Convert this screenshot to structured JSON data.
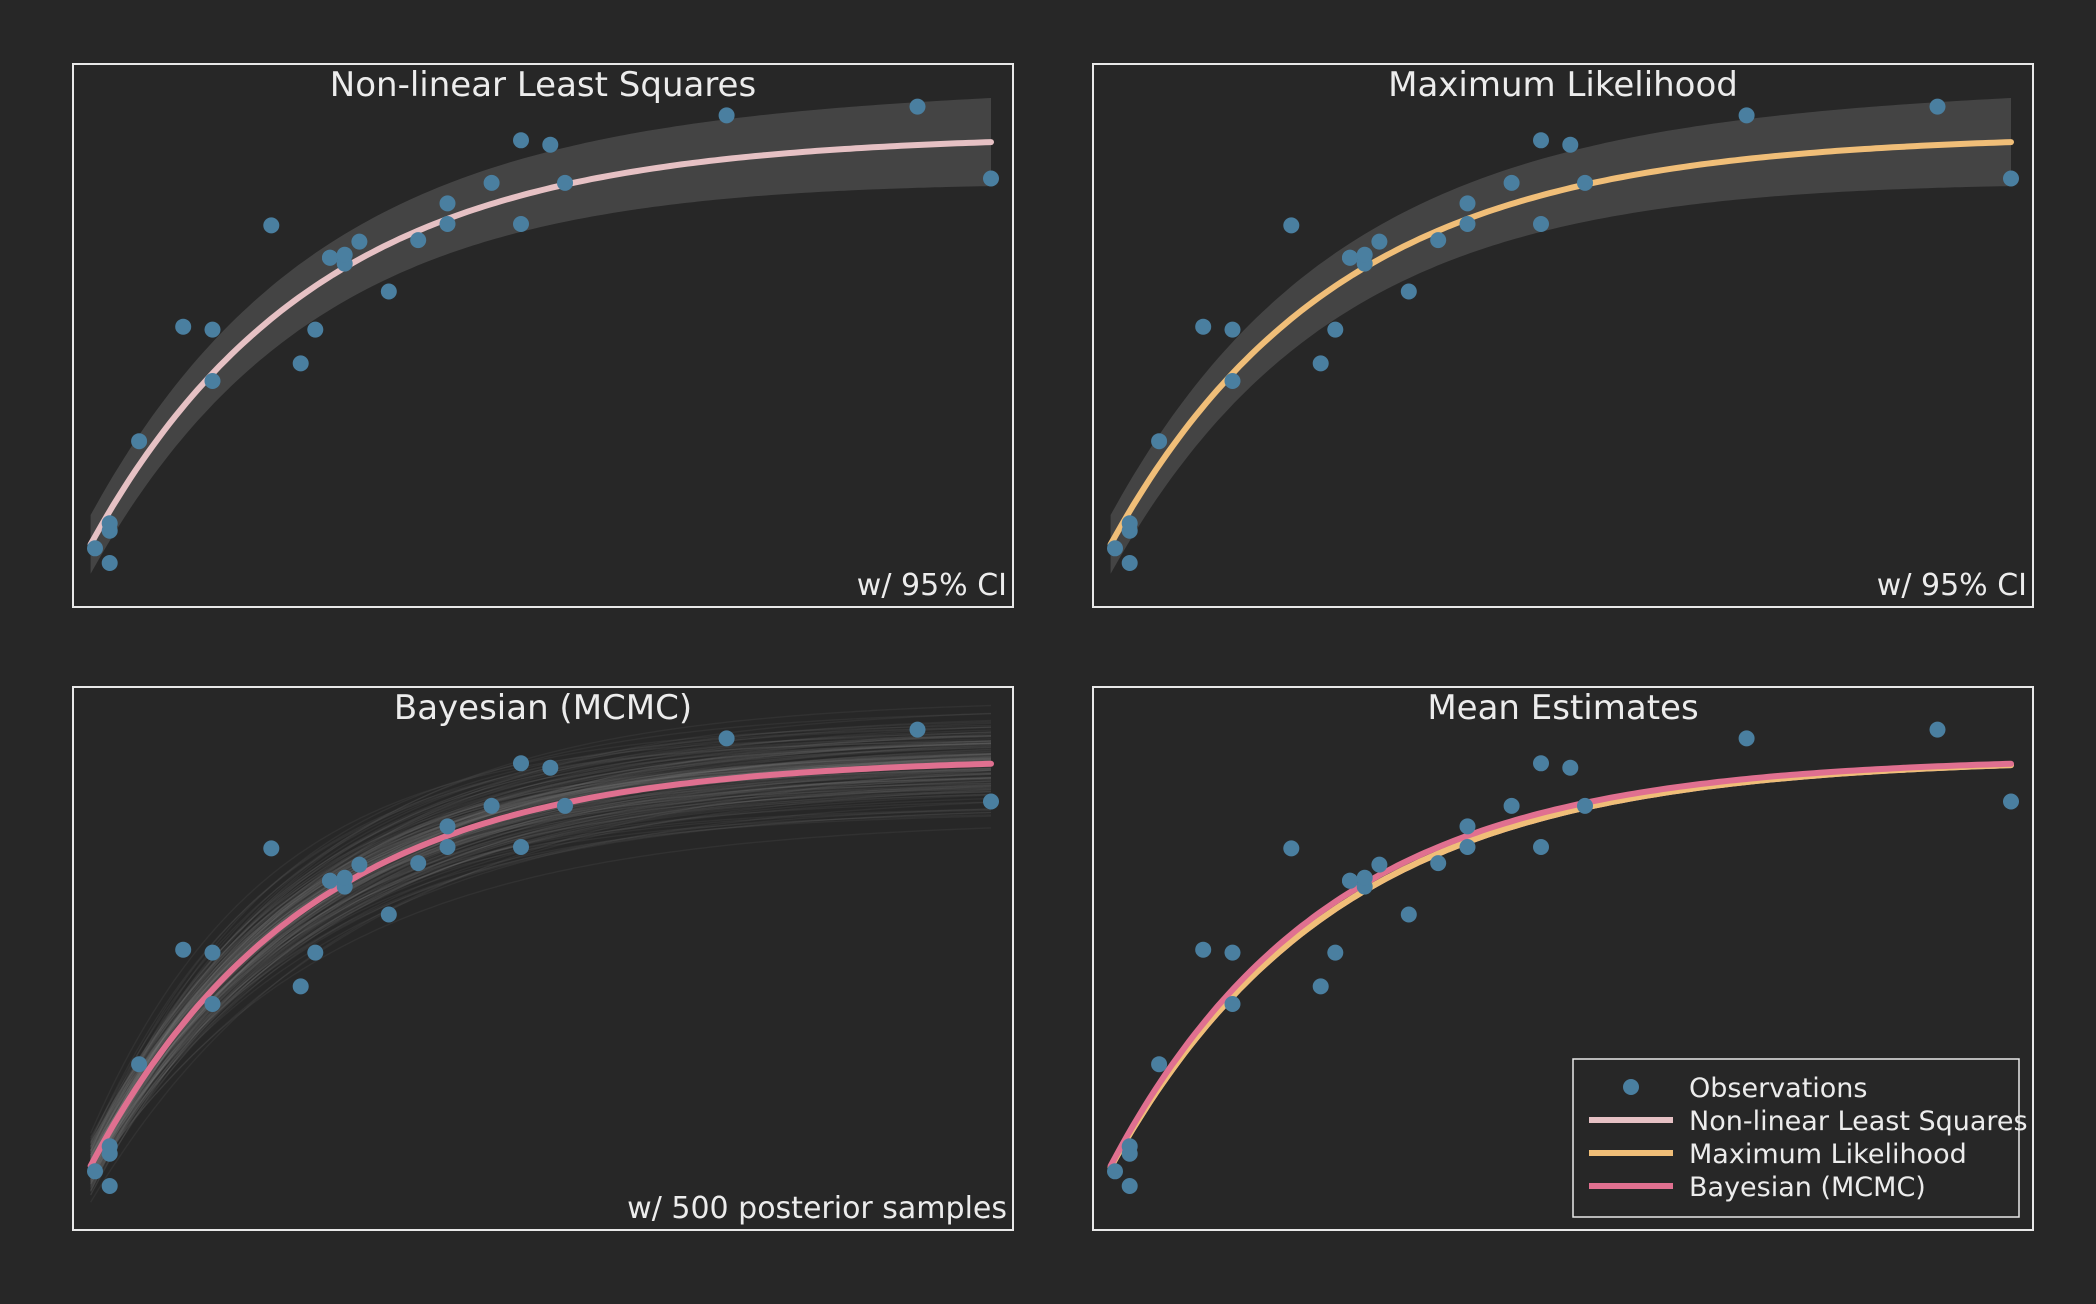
{
  "colors": {
    "background": "#272727",
    "frame": "#e8e8e8",
    "text": "#ececec",
    "observations": "#4a7fa0",
    "band": "#4a4a4a",
    "posterior": "#7a7a7a",
    "nlls": "#e6c1c4",
    "mle": "#f0be78",
    "bayes": "#e07090"
  },
  "chart_data": [
    {
      "type": "scatter",
      "title": "Non-linear Least Squares",
      "annotation": "w/ 95% CI",
      "xlabel": "",
      "ylabel": "",
      "grid": false,
      "xlim": [
        0,
        64
      ],
      "ylim": [
        -2,
        35
      ],
      "overlay": "ci",
      "fit": {
        "key": "nlls",
        "asymptote": 30.2,
        "rate": 0.065,
        "intercept": 0
      },
      "band_halfwidth": [
        2.0,
        3.0
      ],
      "points_ref": "observations"
    },
    {
      "type": "scatter",
      "title": "Maximum Likelihood",
      "annotation": "w/ 95% CI",
      "xlabel": "",
      "ylabel": "",
      "grid": false,
      "xlim": [
        0,
        64
      ],
      "ylim": [
        -2,
        35
      ],
      "overlay": "ci",
      "fit": {
        "key": "mle",
        "asymptote": 30.2,
        "rate": 0.065,
        "intercept": 0
      },
      "band_halfwidth": [
        2.0,
        3.0
      ],
      "points_ref": "observations"
    },
    {
      "type": "scatter",
      "title": "Bayesian (MCMC)",
      "annotation": "w/ 500 posterior samples",
      "xlabel": "",
      "ylabel": "",
      "grid": false,
      "xlim": [
        0,
        64
      ],
      "ylim": [
        -2,
        35
      ],
      "overlay": "posterior",
      "posterior_samples": 500,
      "fit": {
        "key": "bayes",
        "asymptote": 30.2,
        "rate": 0.068,
        "intercept": 0
      },
      "points_ref": "observations"
    },
    {
      "type": "scatter",
      "title": "Mean Estimates",
      "annotation": "",
      "xlabel": "",
      "ylabel": "",
      "grid": false,
      "xlim": [
        0,
        64
      ],
      "ylim": [
        -2,
        35
      ],
      "overlay": "none",
      "fits": [
        {
          "key": "nlls",
          "asymptote": 30.2,
          "rate": 0.065,
          "intercept": 0
        },
        {
          "key": "mle",
          "asymptote": 30.2,
          "rate": 0.065,
          "intercept": 0
        },
        {
          "key": "bayes",
          "asymptote": 30.2,
          "rate": 0.068,
          "intercept": 0
        }
      ],
      "points_ref": "observations",
      "legend": {
        "placement": "lower-right",
        "entries": [
          {
            "label": "Observations",
            "key": "observations",
            "kind": "marker"
          },
          {
            "label": "Non-linear Least Squares",
            "key": "nlls",
            "kind": "line"
          },
          {
            "label": "Maximum Likelihood",
            "key": "mle",
            "kind": "line"
          },
          {
            "label": "Bayesian (MCMC)",
            "key": "bayes",
            "kind": "line"
          }
        ]
      }
    }
  ],
  "observations": {
    "x": [
      1.5,
      2.5,
      2.5,
      2.5,
      4.5,
      7.5,
      9.5,
      9.5,
      13.5,
      15.5,
      16.5,
      17.5,
      17.5,
      18.5,
      18.5,
      19.5,
      21.5,
      23.5,
      25.5,
      25.5,
      28.5,
      30.5,
      30.5,
      32.5,
      33.5,
      44.5,
      57.5,
      62.5
    ],
    "y": [
      2.0,
      1.0,
      3.7,
      3.2,
      9.3,
      17.1,
      16.9,
      13.4,
      24.0,
      14.6,
      16.9,
      21.8,
      21.8,
      21.4,
      22.0,
      22.9,
      19.5,
      23.0,
      24.1,
      25.5,
      26.9,
      29.8,
      24.1,
      29.5,
      26.9,
      31.5,
      32.1,
      27.2
    ]
  }
}
